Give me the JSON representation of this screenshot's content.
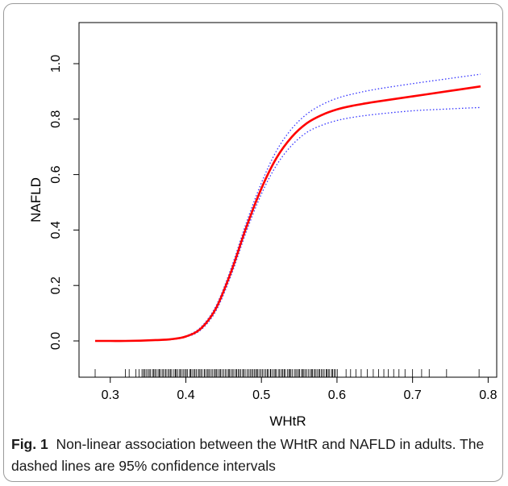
{
  "figure": {
    "label": "Fig. 1",
    "text": "Non-linear association between the WHtR and NAFLD in adults. The dashed lines are 95% confidence intervals"
  },
  "chart_data": {
    "type": "line",
    "xlabel": "WHtR",
    "ylabel": "NAFLD",
    "xlim": [
      0.28,
      0.79
    ],
    "ylim": [
      -0.13,
      1.1
    ],
    "xticks": [
      0.3,
      0.4,
      0.5,
      0.6,
      0.7,
      0.8
    ],
    "xtick_labels": [
      "0.3",
      "0.4",
      "0.5",
      "0.6",
      "0.7",
      "0.8"
    ],
    "yticks": [
      0.0,
      0.2,
      0.4,
      0.6,
      0.8,
      1.0
    ],
    "ytick_labels": [
      "0.0",
      "0.2",
      "0.4",
      "0.6",
      "0.8",
      "1.0"
    ],
    "grid": false,
    "legend": "none",
    "series": [
      {
        "role": "estimate",
        "color": "#ff0000",
        "style": "solid",
        "x": [
          0.28,
          0.3,
          0.32,
          0.34,
          0.36,
          0.38,
          0.4,
          0.42,
          0.44,
          0.46,
          0.48,
          0.5,
          0.52,
          0.54,
          0.56,
          0.58,
          0.6,
          0.62,
          0.65,
          0.7,
          0.75,
          0.79
        ],
        "y": [
          0.0,
          0.0,
          0.0,
          0.001,
          0.003,
          0.006,
          0.016,
          0.045,
          0.118,
          0.25,
          0.41,
          0.55,
          0.66,
          0.735,
          0.785,
          0.815,
          0.835,
          0.848,
          0.862,
          0.882,
          0.902,
          0.918
        ]
      },
      {
        "role": "upper 95% CI",
        "color": "#3333ff",
        "style": "dotted",
        "x": [
          0.28,
          0.3,
          0.32,
          0.34,
          0.36,
          0.38,
          0.4,
          0.42,
          0.44,
          0.46,
          0.48,
          0.5,
          0.52,
          0.54,
          0.56,
          0.58,
          0.6,
          0.62,
          0.65,
          0.7,
          0.75,
          0.79
        ],
        "y": [
          0.0,
          0.0,
          0.0,
          0.001,
          0.003,
          0.007,
          0.018,
          0.05,
          0.127,
          0.263,
          0.426,
          0.57,
          0.686,
          0.765,
          0.818,
          0.852,
          0.875,
          0.89,
          0.907,
          0.928,
          0.947,
          0.962
        ]
      },
      {
        "role": "lower 95% CI",
        "color": "#3333ff",
        "style": "dotted",
        "x": [
          0.28,
          0.3,
          0.32,
          0.34,
          0.36,
          0.38,
          0.4,
          0.42,
          0.44,
          0.46,
          0.48,
          0.5,
          0.52,
          0.54,
          0.56,
          0.58,
          0.6,
          0.62,
          0.65,
          0.7,
          0.75,
          0.79
        ],
        "y": [
          0.0,
          0.0,
          0.0,
          0.001,
          0.002,
          0.005,
          0.014,
          0.04,
          0.109,
          0.237,
          0.394,
          0.53,
          0.634,
          0.705,
          0.752,
          0.778,
          0.795,
          0.806,
          0.817,
          0.83,
          0.837,
          0.842
        ]
      }
    ],
    "rug": {
      "x_dense_range": [
        0.342,
        0.602
      ],
      "x_sparse": [
        0.28,
        0.32,
        0.325,
        0.334,
        0.338,
        0.612,
        0.618,
        0.625,
        0.632,
        0.64,
        0.648,
        0.655,
        0.662,
        0.668,
        0.675,
        0.682,
        0.69,
        0.7,
        0.712,
        0.722,
        0.745,
        0.788
      ]
    }
  }
}
